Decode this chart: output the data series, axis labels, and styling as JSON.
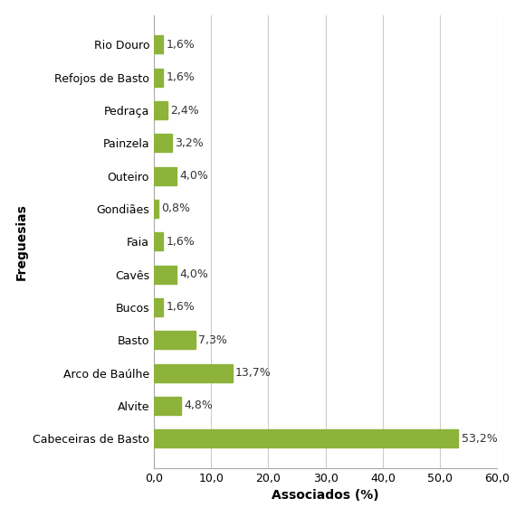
{
  "categories": [
    "Cabeceiras de Basto",
    "Alvite",
    "Arco de Baúlhe",
    "Basto",
    "Bucos",
    "Cavês",
    "Faia",
    "Gondiães",
    "Outeiro",
    "Painzela",
    "Pedraça",
    "Refojos de Basto",
    "Rio Douro"
  ],
  "values": [
    53.2,
    4.8,
    13.7,
    7.3,
    1.6,
    4.0,
    1.6,
    0.8,
    4.0,
    3.2,
    2.4,
    1.6,
    1.6
  ],
  "labels": [
    "53,2%",
    "4,8%",
    "13,7%",
    "7,3%",
    "1,6%",
    "4,0%",
    "1,6%",
    "0,8%",
    "4,0%",
    "3,2%",
    "2,4%",
    "1,6%",
    "1,6%"
  ],
  "bar_color": "#8db33a",
  "xlabel": "Associados (%)",
  "ylabel": "Freguesias",
  "xlim": [
    0,
    60
  ],
  "xticks": [
    0.0,
    10.0,
    20.0,
    30.0,
    40.0,
    50.0,
    60.0
  ],
  "xtick_labels": [
    "0,0",
    "10,0",
    "20,0",
    "30,0",
    "40,0",
    "50,0",
    "60,0"
  ],
  "grid_color": "#cccccc",
  "background_color": "#ffffff",
  "bar_height": 0.55,
  "label_fontsize": 9,
  "axis_label_fontsize": 10,
  "tick_fontsize": 9
}
